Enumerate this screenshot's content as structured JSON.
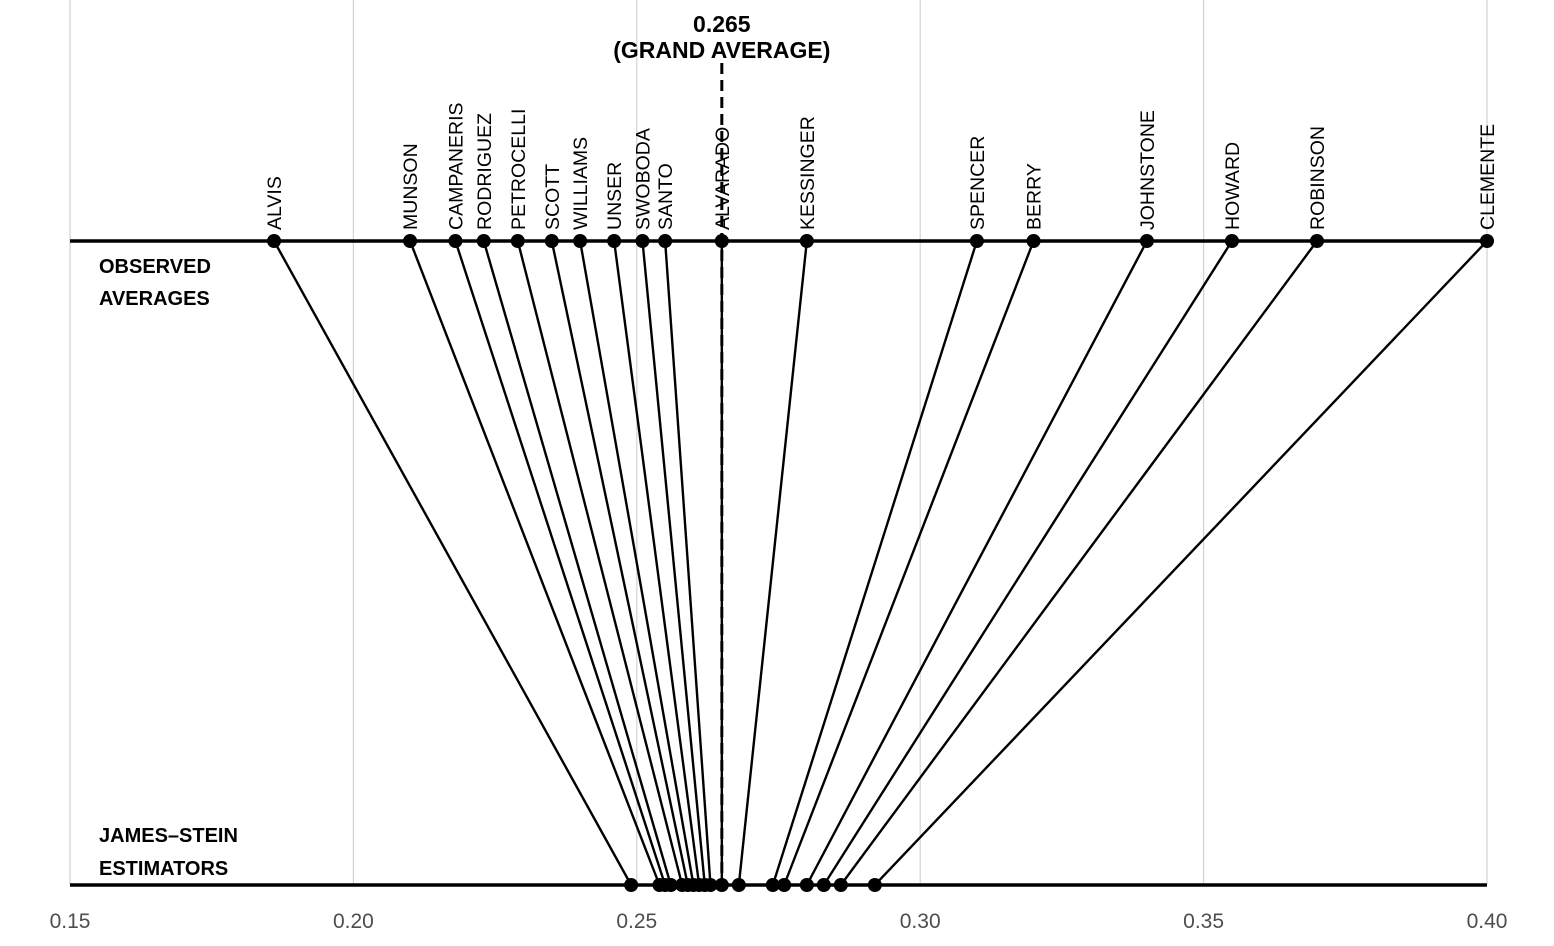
{
  "chart_data": {
    "type": "line",
    "title": "",
    "xlabel": "",
    "ylabel": "",
    "xlim": [
      0.15,
      0.4
    ],
    "x_ticks": [
      "0.15",
      "0.20",
      "0.25",
      "0.30",
      "0.35",
      "0.40"
    ],
    "grid": "vertical",
    "grand_average": {
      "value": 0.265,
      "label_value": "0.265",
      "label_text": "(GRAND AVERAGE)"
    },
    "row_labels": {
      "observed_line1": "OBSERVED",
      "observed_line2": "AVERAGES",
      "js_line1": "JAMES–STEIN",
      "js_line2": "ESTIMATORS"
    },
    "players": [
      {
        "name": "CLEMENTE",
        "observed": 0.4,
        "james_stein": 0.292
      },
      {
        "name": "ROBINSON",
        "observed": 0.37,
        "james_stein": 0.286
      },
      {
        "name": "HOWARD",
        "observed": 0.355,
        "james_stein": 0.283
      },
      {
        "name": "JOHNSTONE",
        "observed": 0.34,
        "james_stein": 0.28
      },
      {
        "name": "BERRY",
        "observed": 0.32,
        "james_stein": 0.276
      },
      {
        "name": "SPENCER",
        "observed": 0.31,
        "james_stein": 0.274
      },
      {
        "name": "KESSINGER",
        "observed": 0.28,
        "james_stein": 0.268
      },
      {
        "name": "ALVARADO",
        "observed": 0.265,
        "james_stein": 0.265
      },
      {
        "name": "SANTO",
        "observed": 0.255,
        "james_stein": 0.263
      },
      {
        "name": "SWOBODA",
        "observed": 0.251,
        "james_stein": 0.262
      },
      {
        "name": "UNSER",
        "observed": 0.246,
        "james_stein": 0.261
      },
      {
        "name": "WILLIAMS",
        "observed": 0.24,
        "james_stein": 0.26
      },
      {
        "name": "SCOTT",
        "observed": 0.235,
        "james_stein": 0.259
      },
      {
        "name": "PETROCELLI",
        "observed": 0.229,
        "james_stein": 0.258
      },
      {
        "name": "RODRIGUEZ",
        "observed": 0.223,
        "james_stein": 0.256
      },
      {
        "name": "CAMPANERIS",
        "observed": 0.218,
        "james_stein": 0.255
      },
      {
        "name": "MUNSON",
        "observed": 0.21,
        "james_stein": 0.254
      },
      {
        "name": "ALVIS",
        "observed": 0.186,
        "james_stein": 0.249
      }
    ]
  }
}
